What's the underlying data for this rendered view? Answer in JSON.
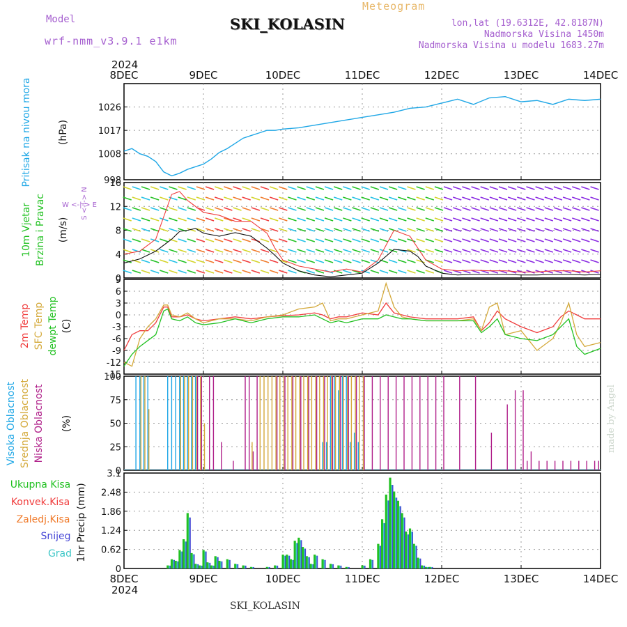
{
  "header": {
    "model_label": "Model",
    "model_name": "wrf-nmm_v3.9.1 e1km",
    "station": "SKI_KOLASIN",
    "meteogram_label": "Meteogram",
    "coords": "lon,lat (19.6312E, 42.8187N)",
    "elevation": "Nadmorska Visina 1450m",
    "model_elevation": "Nadmorska Visina u modelu 1683.27m"
  },
  "footer": {
    "station": "SKI_KOLASIN",
    "credit": "made by Angel"
  },
  "colors": {
    "pressure": "#1fa7e6",
    "wind_speed": "#111111",
    "gust": "#f03c3c",
    "temp_2m": "#f03c3c",
    "temp_sfc": "#d4a93a",
    "dewpoint": "#22c122",
    "cloud_high": "#1fa7e6",
    "cloud_mid": "#d4a93a",
    "cloud_low": "#b0208a",
    "precip_total": "#22c122",
    "precip_conv": "#f03c3c",
    "precip_freezing": "#f07a2a",
    "precip_snow": "#4646d6",
    "precip_grad": "#3fc7c7",
    "grid": "#999999"
  },
  "chart_data": [
    {
      "type": "line",
      "panel": "pressure",
      "ylabel_main": "Pritisak na nivou mora",
      "ylabel_unit": "(hPa)",
      "ylim": [
        998,
        1035
      ],
      "yticks": [
        998,
        1008,
        1017,
        1026
      ],
      "grid": true,
      "year_label": "2024",
      "x_tick_labels": [
        "8DEC",
        "9DEC",
        "10DEC",
        "11DEC",
        "12DEC",
        "13DEC",
        "14DEC"
      ],
      "x": [
        0,
        0.1,
        0.2,
        0.3,
        0.4,
        0.5,
        0.6,
        0.7,
        0.8,
        0.9,
        1.0,
        1.1,
        1.2,
        1.3,
        1.4,
        1.5,
        1.6,
        1.7,
        1.8,
        1.9,
        2.0,
        2.2,
        2.4,
        2.6,
        2.8,
        3.0,
        3.2,
        3.4,
        3.6,
        3.8,
        4.0,
        4.2,
        4.4,
        4.6,
        4.8,
        5.0,
        5.2,
        5.4,
        5.6,
        5.8,
        6.0
      ],
      "values": [
        1009,
        1010,
        1008,
        1007,
        1005,
        1001,
        999.5,
        1000.5,
        1002,
        1003,
        1004,
        1006,
        1008.5,
        1010,
        1012,
        1014,
        1015,
        1016,
        1017,
        1017,
        1017.5,
        1018,
        1019,
        1020,
        1021,
        1022,
        1023,
        1024,
        1025.5,
        1026,
        1027.5,
        1029,
        1027,
        1029.5,
        1030,
        1028,
        1028.5,
        1027,
        1029,
        1028.5,
        1029
      ]
    },
    {
      "type": "line",
      "panel": "wind",
      "ylabel_main": "10m Vjetar",
      "ylabel_sub": "Brzina i Pravac",
      "ylabel_unit": "(m/s)",
      "compass_label": "W <-|-> E",
      "compass_sub": "S <-|-> N",
      "ylim": [
        0,
        16
      ],
      "yticks": [
        0,
        4,
        8,
        12,
        16
      ],
      "grid": true,
      "x": [
        0,
        0.2,
        0.4,
        0.6,
        0.7,
        0.8,
        0.9,
        1.0,
        1.2,
        1.4,
        1.6,
        1.8,
        1.9,
        2.0,
        2.2,
        2.4,
        2.6,
        2.8,
        3.0,
        3.2,
        3.4,
        3.6,
        3.7,
        3.8,
        4.0,
        4.2,
        4.4,
        4.6,
        4.8,
        5.0,
        5.2,
        5.4,
        5.6,
        5.8,
        6.0
      ],
      "series": [
        {
          "key": "speed",
          "values": [
            2.5,
            3.2,
            4.5,
            6.5,
            7.8,
            8.0,
            8.3,
            7.5,
            7.0,
            7.6,
            7.0,
            5.0,
            3.8,
            2.5,
            1.2,
            0.5,
            0.2,
            0.5,
            0.8,
            2.5,
            4.8,
            4.5,
            3.6,
            2.0,
            0.8,
            0.5,
            0.6,
            0.6,
            0.6,
            0.5,
            0.5,
            0.6,
            0.6,
            0.5,
            0.6
          ]
        },
        {
          "key": "gust",
          "values": [
            4,
            4.5,
            6.5,
            14,
            14.5,
            13,
            12,
            11,
            10.5,
            9.5,
            9.5,
            7.5,
            5,
            3,
            2,
            1.5,
            1,
            1.5,
            1,
            3,
            8,
            7,
            5,
            3,
            1.5,
            1.2,
            1.3,
            1.2,
            1.2,
            1,
            1,
            1.2,
            1.2,
            1,
            1.2
          ]
        }
      ]
    },
    {
      "type": "line",
      "panel": "temperature",
      "ylabel_lines": [
        "2m Temp",
        "SFC Temp",
        "dewpt Temp"
      ],
      "ylabel_unit": "(C)",
      "ylim": [
        -15,
        9
      ],
      "yticks": [
        -15,
        -12,
        -9,
        -6,
        -3,
        0,
        3,
        6,
        9
      ],
      "grid": true,
      "x": [
        0,
        0.1,
        0.2,
        0.3,
        0.4,
        0.5,
        0.55,
        0.6,
        0.7,
        0.8,
        0.9,
        1.0,
        1.2,
        1.4,
        1.6,
        1.8,
        2.0,
        2.2,
        2.4,
        2.5,
        2.6,
        2.7,
        2.8,
        3.0,
        3.2,
        3.3,
        3.4,
        3.5,
        3.6,
        3.8,
        4.0,
        4.2,
        4.4,
        4.5,
        4.6,
        4.7,
        4.8,
        5.0,
        5.2,
        5.4,
        5.5,
        5.6,
        5.7,
        5.8,
        6.0
      ],
      "series": [
        {
          "key": "t2m",
          "values": [
            -9,
            -5,
            -4,
            -4,
            -2,
            2,
            2,
            -0.5,
            -0.5,
            0,
            -1,
            -1.5,
            -1,
            -0.5,
            -1,
            -0.5,
            -0.2,
            0,
            0.5,
            0,
            -1,
            -0.5,
            -0.5,
            0.5,
            0,
            3,
            0.5,
            0,
            -0.5,
            -1,
            -1,
            -1,
            -0.5,
            -4,
            -2,
            1,
            -1,
            -3,
            -4.5,
            -3,
            -0.5,
            1,
            0,
            -1,
            -1
          ]
        },
        {
          "key": "tsfc",
          "values": [
            -12,
            -13,
            -6,
            -3,
            -1,
            2.5,
            2.5,
            0,
            -0.5,
            0.5,
            -1,
            -2,
            -1,
            -1,
            -1.5,
            -0.5,
            0,
            1.5,
            2,
            3,
            -1.5,
            -1,
            -1,
            0,
            1,
            8,
            2,
            -0.5,
            -1,
            -1.5,
            -1.5,
            -1.5,
            -1,
            -4,
            2,
            3,
            -5,
            -4,
            -9,
            -6,
            -2,
            3,
            -5,
            -8,
            -7
          ]
        },
        {
          "key": "dew",
          "values": [
            -13,
            -10,
            -8,
            -6.5,
            -5,
            1,
            1.5,
            -1,
            -1.5,
            -0.5,
            -2,
            -2.5,
            -2,
            -1,
            -2,
            -1,
            -0.5,
            -0.5,
            0,
            -1,
            -2,
            -1.5,
            -2,
            -1,
            -1,
            0,
            -0.5,
            -1,
            -1,
            -1.5,
            -1.5,
            -1.5,
            -1.5,
            -4.5,
            -3,
            -1,
            -5,
            -6,
            -6.5,
            -5,
            -3,
            -1,
            -8,
            -10,
            -8.5
          ]
        }
      ]
    },
    {
      "type": "bar",
      "panel": "cloud",
      "ylabel_lines": [
        "Visoka Oblacnost",
        "Srednja Oblacnost",
        "Niska Oblacnost"
      ],
      "ylabel_unit": "(%)",
      "ylim": [
        0,
        100
      ],
      "yticks": [
        0,
        25,
        50,
        75,
        100
      ],
      "grid": true,
      "series": [
        {
          "key": "high",
          "x": [
            0.15,
            0.2,
            0.25,
            0.3,
            0.55,
            0.6,
            0.65,
            0.7,
            0.75,
            0.8,
            0.85,
            0.9,
            2.5,
            2.55,
            2.6,
            2.65,
            2.7,
            2.75,
            2.8,
            2.85,
            2.9,
            2.95
          ],
          "values": [
            100,
            100,
            100,
            100,
            100,
            100,
            100,
            100,
            100,
            100,
            100,
            100,
            30,
            30,
            100,
            100,
            85,
            100,
            100,
            30,
            40,
            30
          ]
        },
        {
          "key": "mid",
          "x": [
            0.2,
            0.25,
            0.3,
            0.7,
            0.75,
            0.8,
            0.85,
            0.9,
            0.95,
            1.0,
            1.6,
            1.7,
            1.75,
            1.8,
            1.85,
            1.9,
            1.95,
            2.0,
            2.05,
            2.1,
            2.15,
            2.2,
            2.25,
            2.3,
            2.35,
            2.4,
            2.45,
            2.5,
            2.55,
            2.6,
            2.65,
            2.7,
            2.75,
            2.8,
            2.85,
            2.9,
            2.95,
            3.0
          ],
          "values": [
            100,
            100,
            65,
            100,
            100,
            100,
            100,
            100,
            100,
            50,
            30,
            100,
            100,
            100,
            100,
            100,
            100,
            100,
            100,
            100,
            100,
            100,
            100,
            100,
            100,
            100,
            100,
            100,
            100,
            100,
            100,
            100,
            100,
            100,
            100,
            100,
            100,
            100
          ]
        },
        {
          "key": "low",
          "x": [
            0.9,
            0.95,
            1.05,
            1.1,
            1.2,
            1.35,
            1.5,
            1.55,
            1.6,
            1.65,
            1.9,
            2.0,
            2.1,
            2.2,
            2.3,
            2.4,
            2.5,
            2.6,
            2.7,
            2.8,
            2.9,
            3.0,
            3.1,
            3.2,
            3.3,
            3.4,
            3.5,
            3.6,
            3.7,
            3.8,
            3.9,
            4.0,
            4.2,
            4.4,
            4.6,
            4.8,
            4.9,
            5.0,
            5.05,
            5.1,
            5.2,
            5.3,
            5.4,
            5.5,
            5.6,
            5.7,
            5.8,
            5.9,
            5.95
          ],
          "values": [
            100,
            100,
            100,
            100,
            30,
            10,
            100,
            100,
            20,
            100,
            100,
            100,
            100,
            100,
            100,
            100,
            100,
            100,
            100,
            100,
            100,
            100,
            100,
            100,
            100,
            100,
            100,
            100,
            100,
            100,
            100,
            100,
            100,
            100,
            40,
            70,
            85,
            85,
            10,
            20,
            10,
            10,
            10,
            10,
            10,
            10,
            10,
            10,
            10
          ]
        }
      ]
    },
    {
      "type": "bar",
      "panel": "precipitation",
      "ylabel_unit": "1hr Precip (mm)",
      "legend": [
        "Ukupna Kisa",
        "Konvek.Kisa",
        "Zaledj.Kisa",
        "Snijeg",
        "Grad"
      ],
      "legend_placement": "left",
      "ylim": [
        0,
        3.1
      ],
      "yticks": [
        0,
        0.62,
        1.24,
        1.86,
        2.48,
        3.1
      ],
      "ytick_labels": [
        "0",
        "0.62",
        "1.24",
        "1.86",
        "2.48",
        "3.1"
      ],
      "grid": true,
      "x": [
        0.55,
        0.6,
        0.65,
        0.7,
        0.75,
        0.8,
        0.85,
        0.9,
        0.95,
        1.0,
        1.05,
        1.1,
        1.15,
        1.2,
        1.3,
        1.4,
        1.5,
        1.6,
        1.8,
        1.9,
        2.0,
        2.05,
        2.1,
        2.15,
        2.2,
        2.25,
        2.3,
        2.35,
        2.4,
        2.5,
        2.6,
        2.7,
        2.8,
        3.0,
        3.1,
        3.2,
        3.25,
        3.3,
        3.35,
        3.4,
        3.45,
        3.5,
        3.55,
        3.6,
        3.65,
        3.7,
        3.75,
        3.8,
        3.85
      ],
      "values": [
        0.1,
        0.3,
        0.25,
        0.6,
        0.95,
        1.8,
        0.5,
        0.15,
        0.1,
        0.6,
        0.2,
        0.1,
        0.4,
        0.25,
        0.3,
        0.15,
        0.1,
        0.05,
        0.05,
        0.1,
        0.45,
        0.45,
        0.3,
        0.9,
        1.0,
        0.7,
        0.4,
        0.15,
        0.45,
        0.3,
        0.15,
        0.1,
        0.05,
        0.1,
        0.3,
        0.8,
        1.6,
        2.4,
        2.95,
        2.5,
        2.2,
        1.8,
        1.2,
        1.3,
        0.8,
        0.35,
        0.1,
        0.05,
        0.05
      ]
    }
  ]
}
